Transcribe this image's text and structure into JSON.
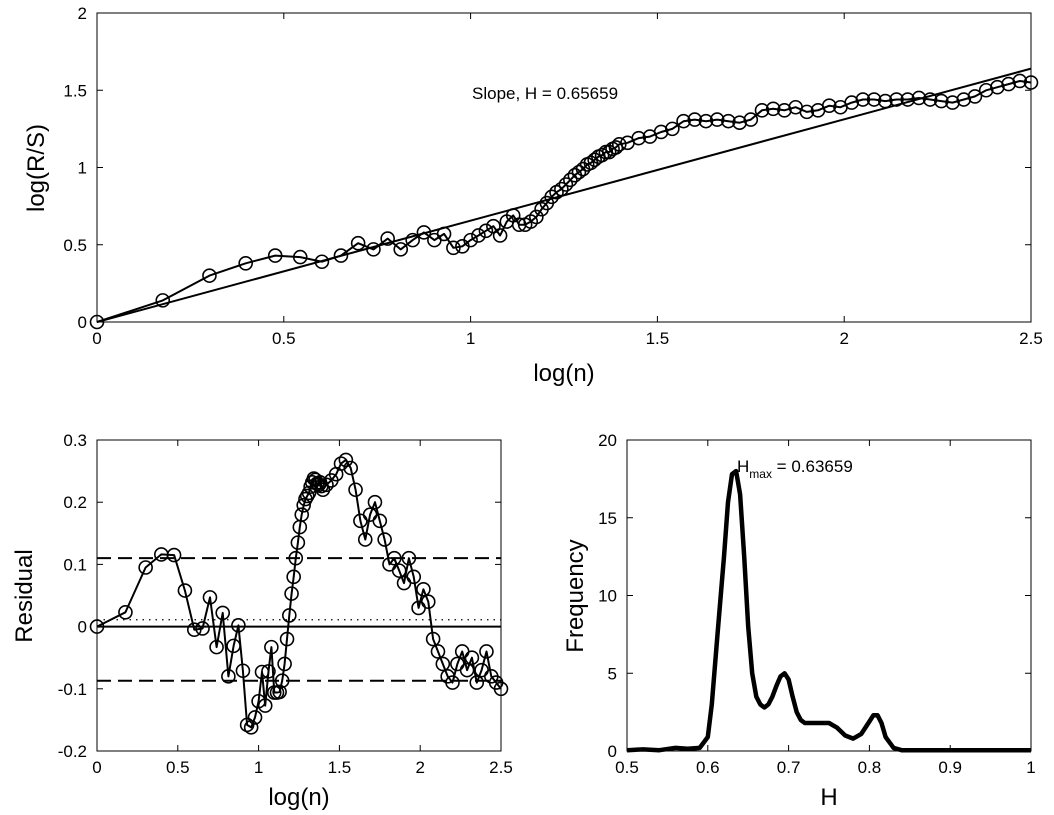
{
  "chart_data": [
    {
      "type": "scatter",
      "xlabel": "log(n)",
      "ylabel": "log(R/S)",
      "xlim": [
        0,
        2.5
      ],
      "ylim": [
        0,
        2
      ],
      "xticks": [
        "0",
        "0.5",
        "1",
        "1.5",
        "2",
        "2.5"
      ],
      "yticks": [
        "0",
        "0.5",
        "1",
        "1.5",
        "2"
      ],
      "annotation": "Slope, H = 0.65659",
      "fit_line": {
        "x": [
          0,
          2.5
        ],
        "y": [
          0,
          1.64
        ]
      },
      "series": [
        {
          "marker": "circle",
          "x": [
            0,
            0.176,
            0.301,
            0.398,
            0.477,
            0.544,
            0.602,
            0.653,
            0.699,
            0.74,
            0.778,
            0.813,
            0.845,
            0.875,
            0.903,
            0.929,
            0.954,
            0.978,
            1.0,
            1.021,
            1.041,
            1.061,
            1.079,
            1.097,
            1.114,
            1.13,
            1.146,
            1.161,
            1.176,
            1.19,
            1.204,
            1.217,
            1.23,
            1.243,
            1.255,
            1.267,
            1.279,
            1.29,
            1.301,
            1.312,
            1.322,
            1.332,
            1.342,
            1.352,
            1.362,
            1.371,
            1.38,
            1.389,
            1.398,
            1.42,
            1.45,
            1.48,
            1.51,
            1.54,
            1.57,
            1.6,
            1.63,
            1.66,
            1.69,
            1.72,
            1.75,
            1.78,
            1.81,
            1.84,
            1.87,
            1.9,
            1.93,
            1.96,
            1.99,
            2.02,
            2.05,
            2.08,
            2.11,
            2.14,
            2.17,
            2.2,
            2.23,
            2.26,
            2.29,
            2.32,
            2.35,
            2.38,
            2.41,
            2.44,
            2.47,
            2.5
          ],
          "y": [
            0.0,
            0.14,
            0.3,
            0.38,
            0.43,
            0.42,
            0.39,
            0.43,
            0.51,
            0.47,
            0.54,
            0.47,
            0.53,
            0.58,
            0.53,
            0.57,
            0.48,
            0.49,
            0.53,
            0.56,
            0.59,
            0.62,
            0.56,
            0.65,
            0.69,
            0.63,
            0.63,
            0.65,
            0.68,
            0.73,
            0.77,
            0.81,
            0.84,
            0.86,
            0.89,
            0.92,
            0.95,
            0.97,
            0.99,
            1.02,
            1.03,
            1.05,
            1.07,
            1.08,
            1.1,
            1.1,
            1.12,
            1.13,
            1.15,
            1.16,
            1.19,
            1.2,
            1.23,
            1.25,
            1.3,
            1.31,
            1.3,
            1.31,
            1.3,
            1.29,
            1.31,
            1.37,
            1.38,
            1.37,
            1.39,
            1.36,
            1.37,
            1.4,
            1.39,
            1.42,
            1.44,
            1.44,
            1.43,
            1.44,
            1.44,
            1.45,
            1.44,
            1.43,
            1.42,
            1.44,
            1.46,
            1.5,
            1.52,
            1.54,
            1.56,
            1.55
          ]
        }
      ]
    },
    {
      "type": "line",
      "xlabel": "log(n)",
      "ylabel": "Residual",
      "xlim": [
        0,
        2.5
      ],
      "ylim": [
        -0.2,
        0.3
      ],
      "xticks": [
        "0",
        "0.5",
        "1",
        "1.5",
        "2",
        "2.5"
      ],
      "yticks": [
        "-0.2",
        "-0.1",
        "0",
        "0.1",
        "0.2",
        "0.3"
      ],
      "hlines": [
        {
          "y": 0.11,
          "style": "dashed"
        },
        {
          "y": -0.087,
          "style": "dashed"
        },
        {
          "y": 0.011,
          "style": "dotted"
        },
        {
          "y": 0,
          "style": "solid"
        }
      ],
      "series": [
        {
          "marker": "circle",
          "x": [
            0,
            0.176,
            0.301,
            0.398,
            0.477,
            0.544,
            0.602,
            0.653,
            0.699,
            0.74,
            0.778,
            0.813,
            0.845,
            0.875,
            0.903,
            0.929,
            0.954,
            0.978,
            1.0,
            1.021,
            1.041,
            1.061,
            1.079,
            1.097,
            1.114,
            1.13,
            1.146,
            1.161,
            1.176,
            1.19,
            1.204,
            1.217,
            1.23,
            1.243,
            1.255,
            1.267,
            1.279,
            1.29,
            1.301,
            1.312,
            1.322,
            1.332,
            1.342,
            1.352,
            1.362,
            1.371,
            1.38,
            1.389,
            1.398,
            1.42,
            1.45,
            1.48,
            1.51,
            1.54,
            1.57,
            1.6,
            1.63,
            1.66,
            1.69,
            1.72,
            1.75,
            1.78,
            1.81,
            1.84,
            1.87,
            1.9,
            1.93,
            1.96,
            1.99,
            2.02,
            2.05,
            2.08,
            2.11,
            2.14,
            2.17,
            2.2,
            2.23,
            2.26,
            2.29,
            2.32,
            2.35,
            2.38,
            2.41,
            2.44,
            2.47,
            2.5
          ],
          "y": [
            0.0,
            0.023,
            0.095,
            0.116,
            0.115,
            0.058,
            -0.005,
            -0.003,
            0.047,
            -0.033,
            0.022,
            -0.08,
            -0.031,
            0.002,
            -0.071,
            -0.158,
            -0.162,
            -0.146,
            -0.12,
            -0.073,
            -0.127,
            -0.072,
            -0.033,
            -0.106,
            -0.106,
            -0.105,
            -0.087,
            -0.06,
            -0.02,
            0.018,
            0.053,
            0.08,
            0.11,
            0.135,
            0.16,
            0.18,
            0.195,
            0.205,
            0.21,
            0.215,
            0.225,
            0.232,
            0.238,
            0.236,
            0.23,
            0.228,
            0.232,
            0.226,
            0.22,
            0.228,
            0.235,
            0.245,
            0.262,
            0.268,
            0.255,
            0.22,
            0.17,
            0.14,
            0.18,
            0.2,
            0.17,
            0.14,
            0.1,
            0.11,
            0.09,
            0.07,
            0.11,
            0.08,
            0.03,
            0.06,
            0.04,
            -0.02,
            -0.04,
            -0.06,
            -0.08,
            -0.09,
            -0.06,
            -0.04,
            -0.07,
            -0.05,
            -0.09,
            -0.07,
            -0.04,
            -0.08,
            -0.09,
            -0.1
          ]
        }
      ]
    },
    {
      "type": "line",
      "xlabel": "H",
      "ylabel": "Frequency",
      "xlim": [
        0.5,
        1
      ],
      "ylim": [
        0,
        20
      ],
      "xticks": [
        "0.5",
        "0.6",
        "0.7",
        "0.8",
        "0.9",
        "1"
      ],
      "yticks": [
        "0",
        "5",
        "10",
        "15",
        "20"
      ],
      "annotation": {
        "main": "H",
        "subscript": "max",
        "rest": " = 0.63659"
      },
      "series": [
        {
          "x": [
            0.5,
            0.52,
            0.54,
            0.56,
            0.575,
            0.59,
            0.6,
            0.605,
            0.612,
            0.62,
            0.625,
            0.63,
            0.635,
            0.64,
            0.645,
            0.65,
            0.655,
            0.66,
            0.665,
            0.67,
            0.675,
            0.68,
            0.685,
            0.69,
            0.695,
            0.7,
            0.705,
            0.71,
            0.715,
            0.72,
            0.73,
            0.74,
            0.75,
            0.76,
            0.77,
            0.78,
            0.79,
            0.8,
            0.805,
            0.81,
            0.815,
            0.82,
            0.83,
            0.84,
            0.85,
            0.9,
            0.95,
            1.0
          ],
          "y": [
            0.05,
            0.1,
            0.05,
            0.2,
            0.15,
            0.2,
            0.9,
            3.0,
            7.5,
            12.5,
            16.0,
            17.8,
            18.0,
            16.5,
            12.5,
            8.0,
            5.0,
            3.5,
            3.0,
            2.8,
            3.0,
            3.5,
            4.2,
            4.8,
            5.0,
            4.6,
            3.5,
            2.5,
            2.0,
            1.8,
            1.8,
            1.8,
            1.8,
            1.5,
            1.0,
            0.8,
            1.1,
            1.9,
            2.3,
            2.3,
            1.8,
            0.9,
            0.2,
            0.05,
            0.05,
            0.05,
            0.05,
            0.05
          ]
        }
      ]
    }
  ]
}
